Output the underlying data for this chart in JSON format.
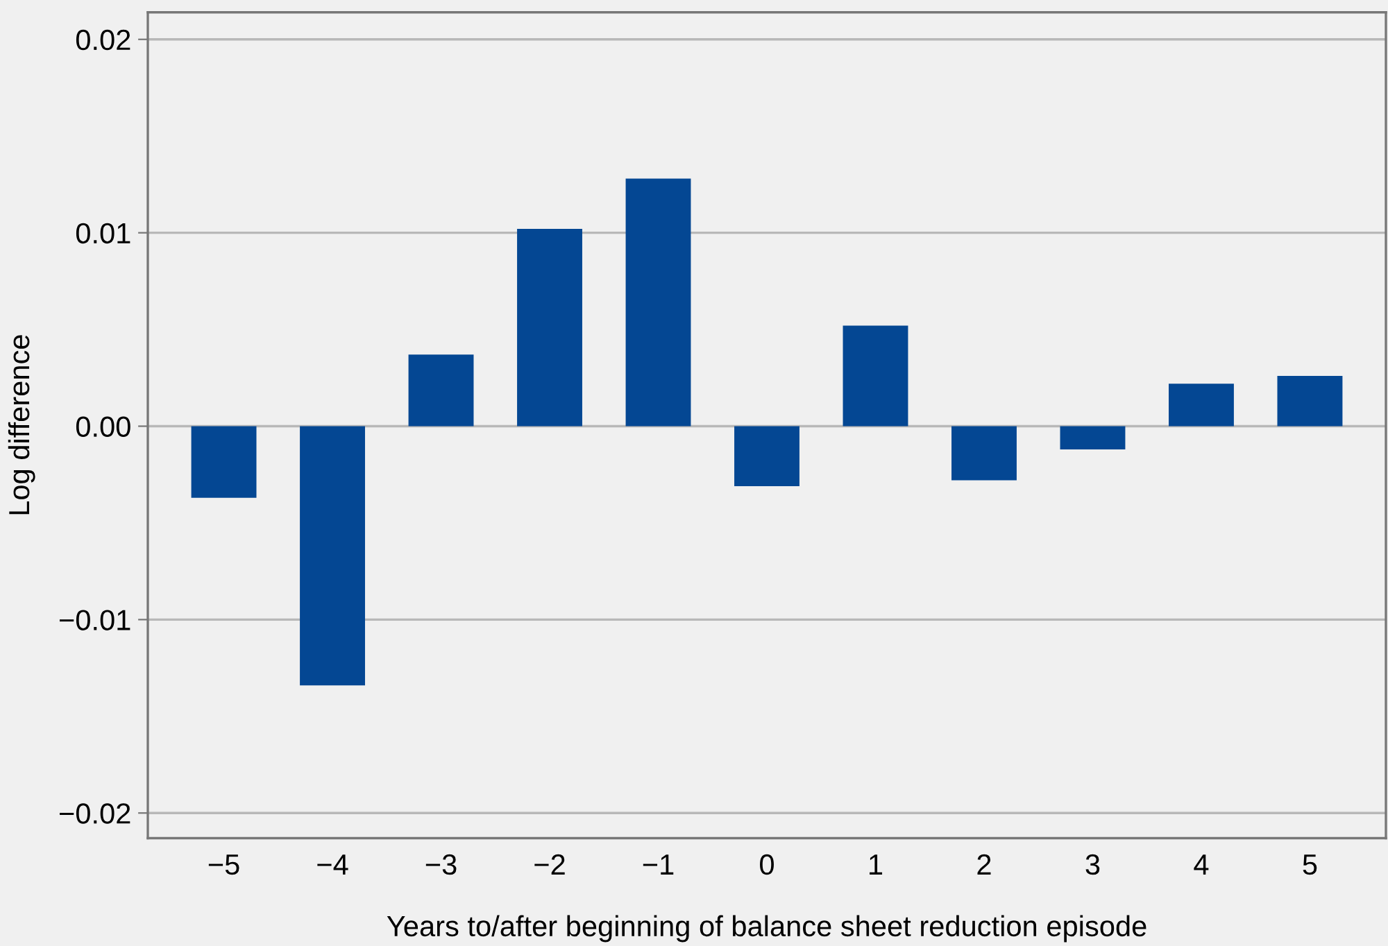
{
  "chart_data": {
    "type": "bar",
    "xlabel": "Years to/after beginning of balance sheet reduction episode",
    "ylabel": "Log difference",
    "categories": [
      "−5",
      "−4",
      "−3",
      "−2",
      "−1",
      "0",
      "1",
      "2",
      "3",
      "4",
      "5"
    ],
    "values": [
      -0.0037,
      -0.0134,
      0.0037,
      0.0102,
      0.0128,
      -0.0031,
      0.0052,
      -0.0028,
      -0.0012,
      0.0022,
      0.0026
    ],
    "color": "#044793",
    "ylim": [
      -0.0213,
      0.0214
    ],
    "yticks": [
      {
        "value": -0.02,
        "label": "−0.02"
      },
      {
        "value": -0.01,
        "label": "−0.01"
      },
      {
        "value": 0,
        "label": "0.00"
      },
      {
        "value": 0.01,
        "label": "0.01"
      },
      {
        "value": 0.02,
        "label": "0.02"
      }
    ],
    "grid": "y"
  }
}
